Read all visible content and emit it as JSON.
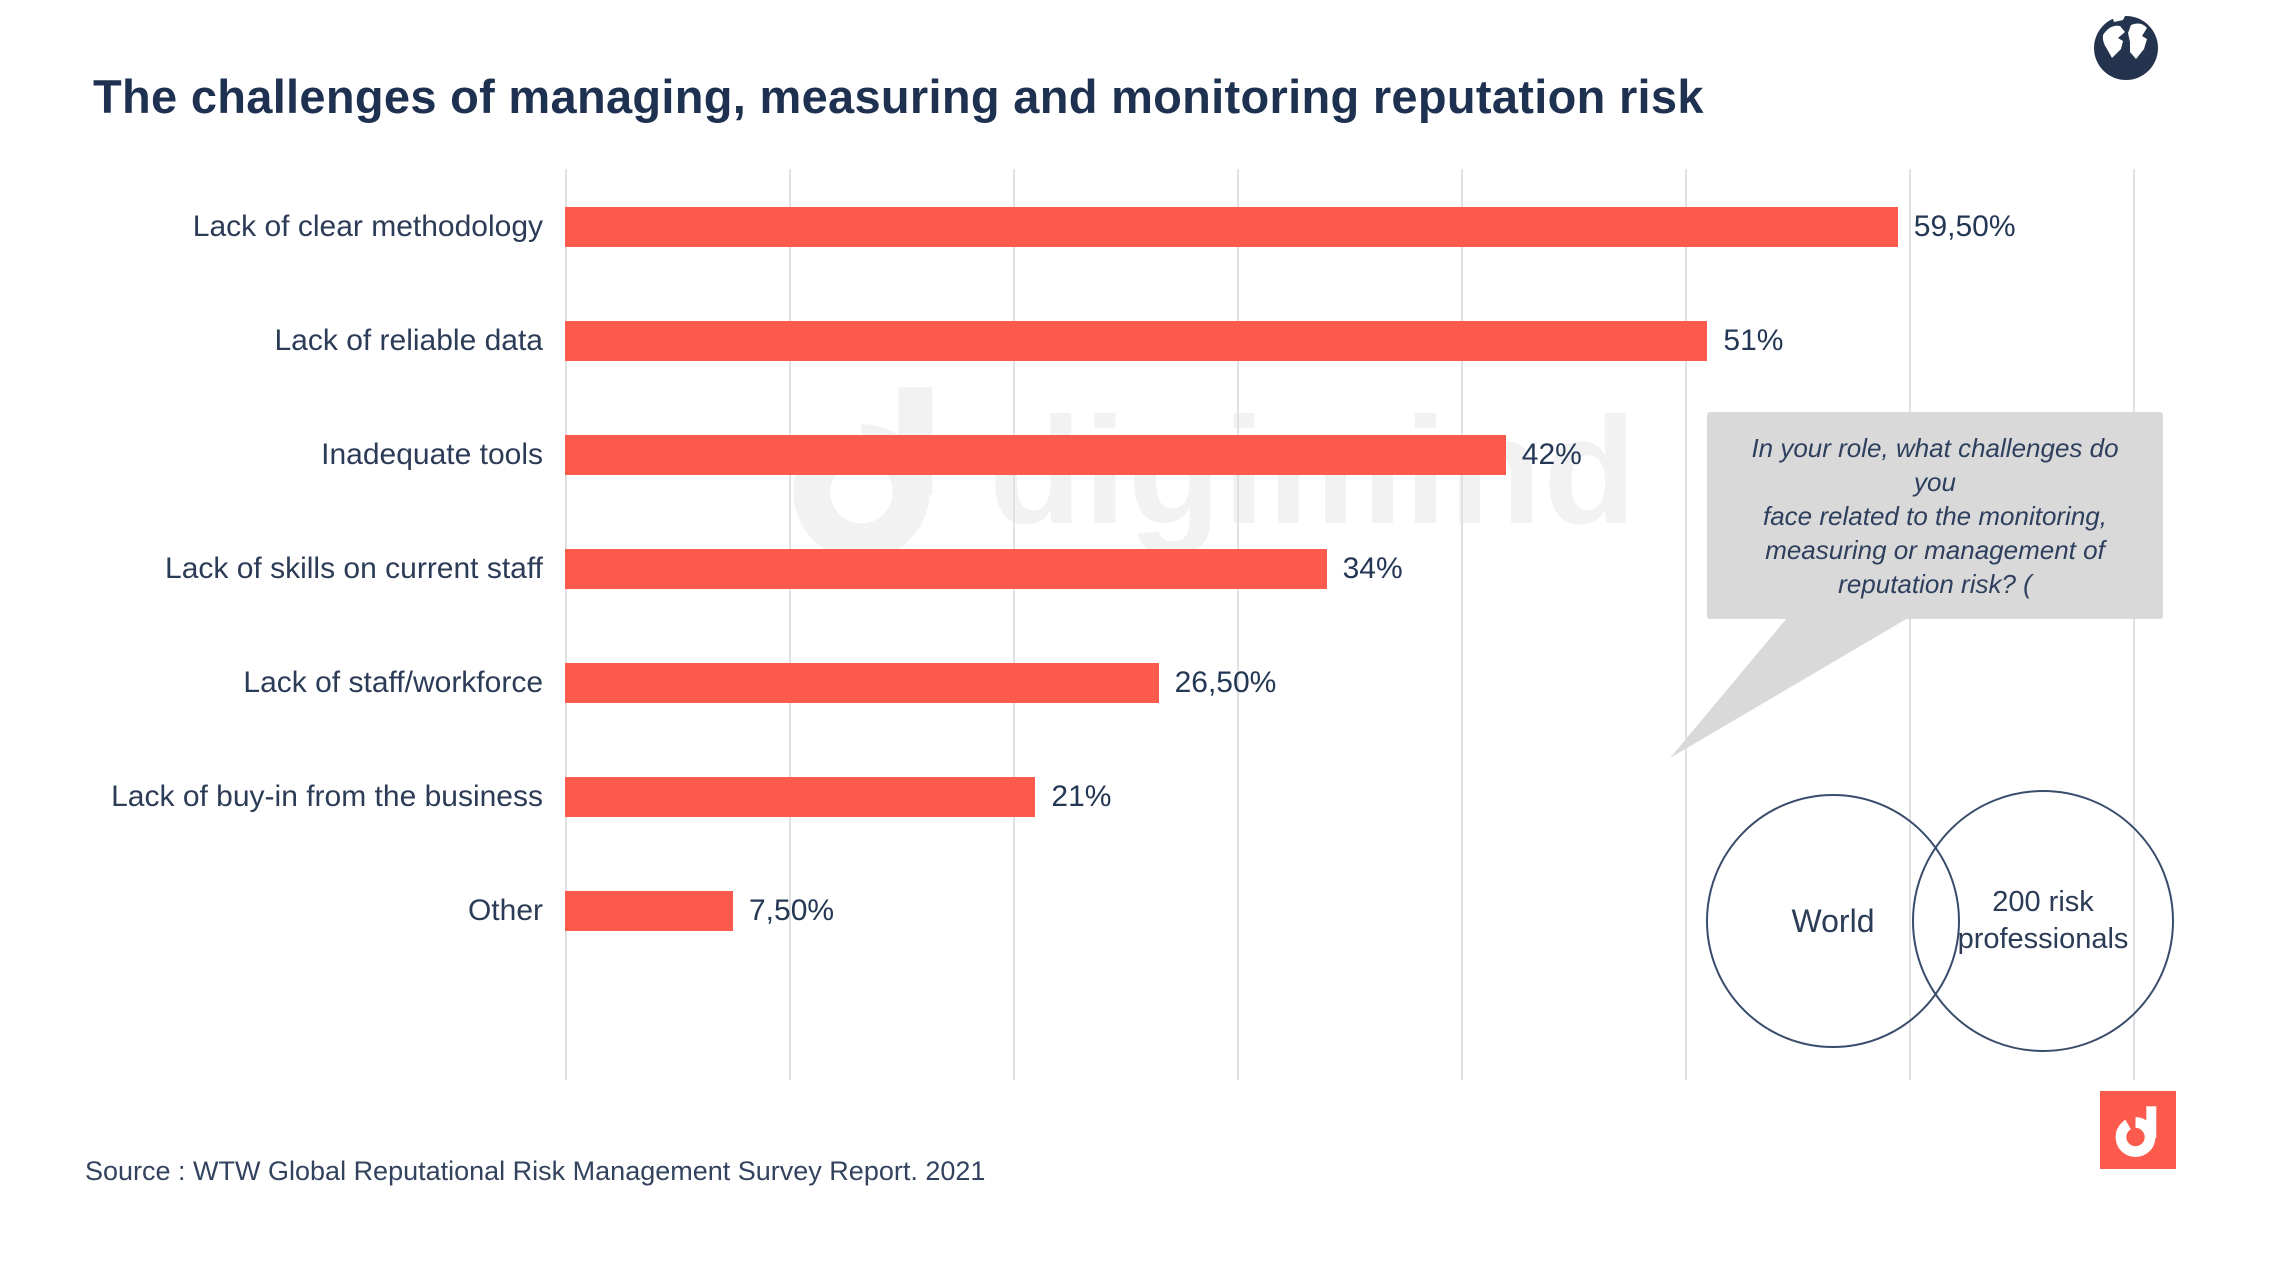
{
  "title": "The challenges of managing, measuring and monitoring reputation risk",
  "chart_data": {
    "type": "bar",
    "orientation": "horizontal",
    "title": "The challenges of managing, measuring and monitoring reputation risk",
    "categories": [
      "Lack of clear methodology",
      "Lack of reliable data",
      "Inadequate tools",
      "Lack of skills on current staff",
      "Lack of staff/workforce",
      "Lack of buy-in from the business",
      "Other"
    ],
    "values": [
      59.5,
      51,
      42,
      34,
      26.5,
      21,
      7.5
    ],
    "value_labels": [
      "59,50%",
      "51%",
      "42%",
      "34%",
      "26,50%",
      "21%",
      "7,50%"
    ],
    "xlim": [
      0,
      70
    ],
    "grid": true,
    "gridline_step_pct": 10,
    "bar_color": "#FC5A4C",
    "legend": "none"
  },
  "annotation_bubble": {
    "text": "In your role, what challenges do you\nface related to the monitoring,\nmeasuring or management of\nreputation risk? ("
  },
  "venn": {
    "left_label": "World",
    "right_label": "200 risk\nprofessionals"
  },
  "watermark": {
    "text": "digimind"
  },
  "source": "Source : WTW Global Reputational Risk Management Survey Report. 2021",
  "icons": {
    "globe": "globe-icon",
    "logo": "digimind-logo"
  },
  "colors": {
    "bar": "#FC5A4C",
    "navy": "#243754",
    "grid": "#E1E1E1",
    "bubble_bg": "#D9D9D9",
    "watermark": "#F2F2F2",
    "logo_bg": "#FC5A4C"
  }
}
